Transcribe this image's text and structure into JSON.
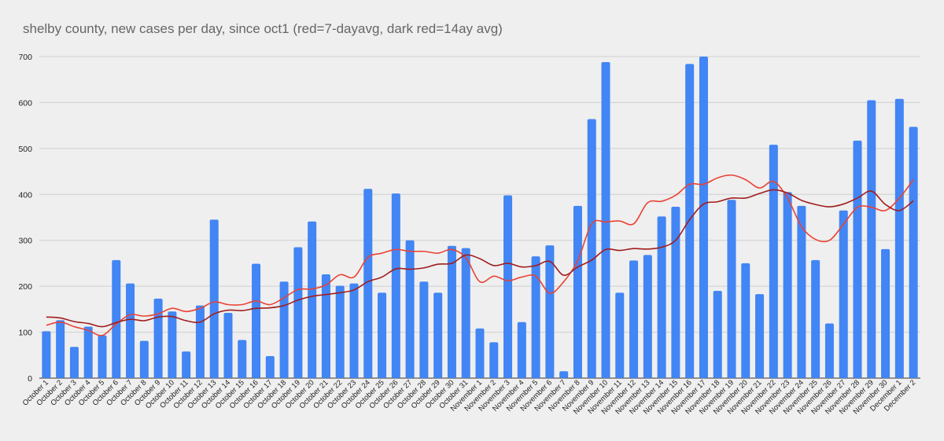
{
  "chart_data": {
    "type": "bar",
    "title": "shelby county, new cases per day, since oct1 (red=7-dayavg, dark red=14ay avg)",
    "xlabel": "",
    "ylabel": "",
    "ylim": [
      0,
      700
    ],
    "yticks": [
      0,
      100,
      200,
      300,
      400,
      500,
      600,
      700
    ],
    "grid": true,
    "legend": "none",
    "colors": {
      "bars": "#4285f4",
      "avg7": "#ea4335",
      "avg14": "#a11d1d",
      "grid": "#cfcfcf",
      "background": "#efefef"
    },
    "categories": [
      "October 1",
      "October 2",
      "October 3",
      "October 4",
      "October 5",
      "October 6",
      "October 7",
      "October 8",
      "October 9",
      "October 10",
      "October 11",
      "October 12",
      "October 13",
      "October 14",
      "October 15",
      "October 16",
      "October 17",
      "October 18",
      "October 19",
      "October 20",
      "October 21",
      "October 22",
      "October 23",
      "October 24",
      "October 25",
      "October 26",
      "October 27",
      "October 28",
      "October 29",
      "October 30",
      "October 31",
      "November 1",
      "November 2",
      "November 3",
      "November 4",
      "November 5",
      "November 6",
      "November 7",
      "November 8",
      "November 9",
      "November 10",
      "November 11",
      "November 12",
      "November 13",
      "November 14",
      "November 15",
      "November 16",
      "November 17",
      "November 18",
      "November 19",
      "November 20",
      "November 21",
      "November 22",
      "November 23",
      "November 24",
      "November 25",
      "November 26",
      "November 27",
      "November 28",
      "November 29",
      "November 30",
      "December 1",
      "December 2"
    ],
    "series": [
      {
        "name": "new cases",
        "type": "bar",
        "values": [
          102,
          126,
          68,
          112,
          93,
          257,
          206,
          81,
          173,
          145,
          58,
          158,
          345,
          142,
          83,
          249,
          48,
          210,
          285,
          341,
          226,
          201,
          206,
          412,
          186,
          402,
          300,
          210,
          186,
          288,
          283,
          108,
          78,
          398,
          122,
          265,
          289,
          15,
          375,
          564,
          688,
          186,
          256,
          268,
          352,
          373,
          684,
          700,
          190,
          388,
          250,
          183,
          508,
          405,
          375,
          257,
          119,
          365,
          517,
          605,
          281,
          608,
          547
        ]
      },
      {
        "name": "red=7-dayavg",
        "type": "line",
        "values": [
          115,
          122,
          112,
          104,
          93,
          118,
          138,
          135,
          140,
          152,
          145,
          152,
          166,
          160,
          160,
          168,
          160,
          175,
          193,
          194,
          203,
          225,
          220,
          263,
          272,
          280,
          276,
          276,
          272,
          280,
          262,
          210,
          222,
          212,
          220,
          222,
          185,
          210,
          256,
          336,
          340,
          342,
          336,
          382,
          385,
          398,
          422,
          422,
          436,
          442,
          432,
          414,
          428,
          392,
          330,
          302,
          300,
          335,
          372,
          372,
          365,
          392,
          432
        ]
      },
      {
        "name": "dark red=14ay avg",
        "type": "line",
        "values": [
          133,
          131,
          123,
          119,
          112,
          121,
          128,
          125,
          133,
          134,
          125,
          122,
          140,
          148,
          147,
          152,
          153,
          158,
          170,
          178,
          182,
          186,
          192,
          210,
          220,
          238,
          237,
          240,
          248,
          250,
          268,
          260,
          245,
          250,
          242,
          245,
          254,
          224,
          242,
          257,
          280,
          278,
          282,
          281,
          285,
          300,
          345,
          379,
          384,
          392,
          392,
          402,
          410,
          403,
          387,
          378,
          373,
          379,
          392,
          407,
          378,
          365,
          386
        ]
      }
    ]
  }
}
